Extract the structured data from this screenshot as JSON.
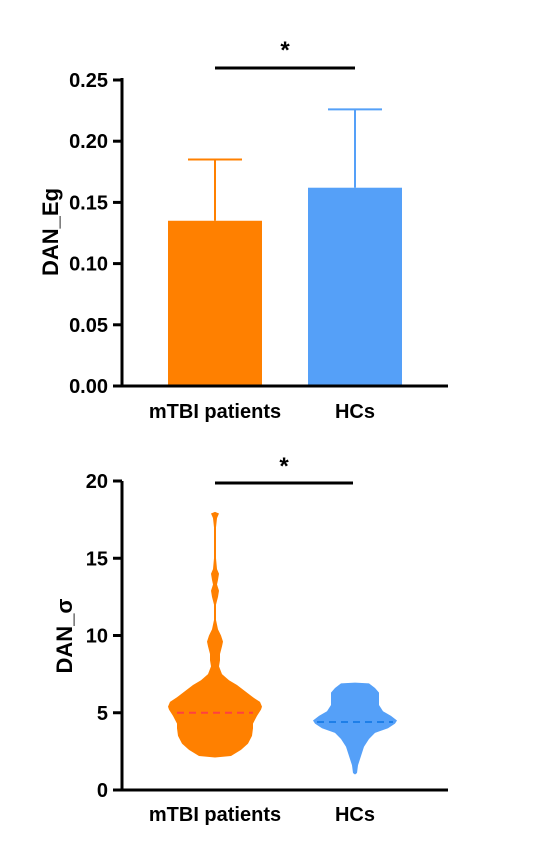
{
  "chart_data": [
    {
      "type": "bar",
      "categories": [
        "mTBI patients",
        "HCs"
      ],
      "values": [
        0.135,
        0.162
      ],
      "errors": [
        0.05,
        0.064
      ],
      "colors": [
        "#FF8000",
        "#55A0F8"
      ],
      "ylabel": "DAN_Eg",
      "ylim": [
        0,
        0.25
      ],
      "yticks": [
        "0.00",
        "0.05",
        "0.10",
        "0.15",
        "0.20",
        "0.25"
      ],
      "significance": "*",
      "grid": false
    },
    {
      "type": "violin",
      "categories": [
        "mTBI patients",
        "HCs"
      ],
      "medians": [
        5.0,
        4.4
      ],
      "ranges": [
        [
          2.1,
          18.0
        ],
        [
          1.0,
          6.9
        ]
      ],
      "colors": [
        "#FF8000",
        "#55A0F8"
      ],
      "median_colors": [
        "#FF4040",
        "#1E7FE8"
      ],
      "ylabel": "DAN_σ",
      "ylim": [
        0,
        20
      ],
      "yticks": [
        "0",
        "5",
        "10",
        "15",
        "20"
      ],
      "significance": "*",
      "grid": false
    }
  ]
}
